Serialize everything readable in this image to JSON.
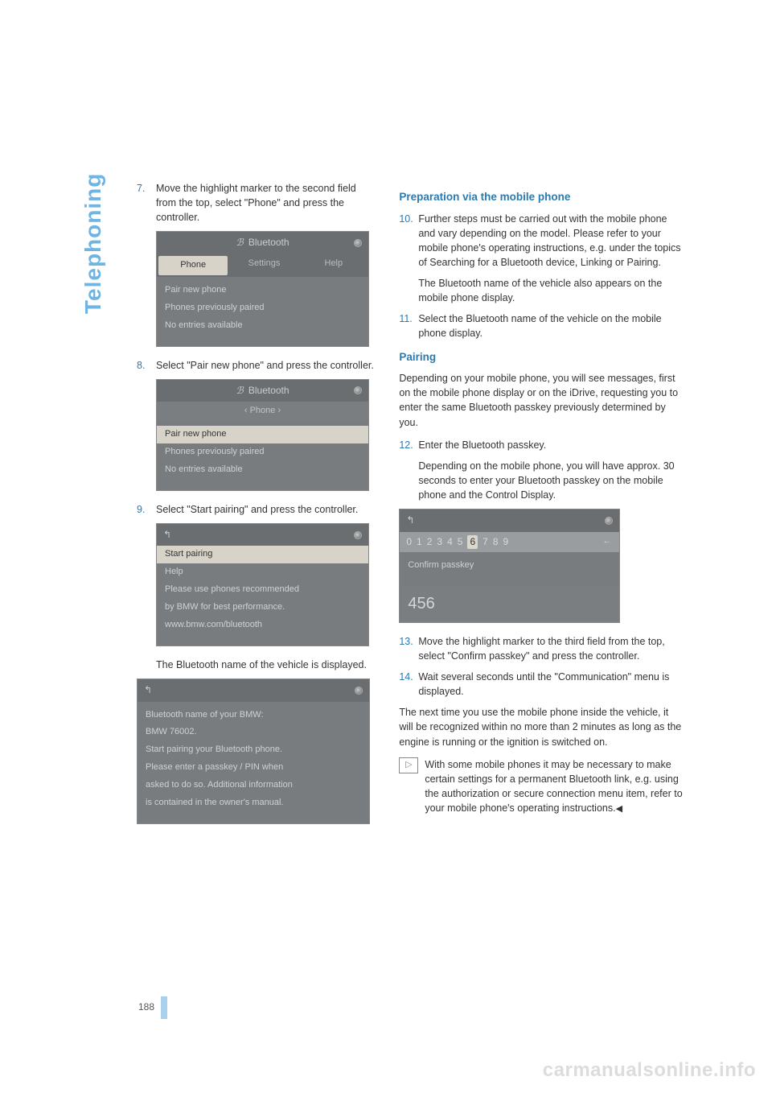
{
  "side_label": "Telephoning",
  "page_number": "188",
  "watermark": "carmanualsonline.info",
  "left": {
    "steps": [
      {
        "num": "7.",
        "text": "Move the highlight marker to the second field from the top, select \"Phone\" and press the controller."
      },
      {
        "num": "8.",
        "text": "Select \"Pair new phone\" and press the controller."
      },
      {
        "num": "9.",
        "text": "Select \"Start pairing\" and press the controller."
      }
    ],
    "sub_after_9": "The Bluetooth name of the vehicle is displayed.",
    "ss1": {
      "title": "Bluetooth",
      "tabs": [
        "Phone",
        "Settings",
        "Help"
      ],
      "lines": [
        "Pair new phone",
        "Phones previously paired",
        "No entries available"
      ]
    },
    "ss2": {
      "title": "Bluetooth",
      "subhead": "Phone",
      "lines": [
        "Pair new phone",
        "Phones previously paired",
        "No entries available"
      ]
    },
    "ss3": {
      "lines": [
        "Start pairing",
        "Help",
        "Please use phones recommended",
        "by BMW for best performance.",
        "www.bmw.com/bluetooth"
      ]
    },
    "ss4": {
      "lines": [
        "Bluetooth name of your BMW:",
        "BMW 76002.",
        "Start pairing your Bluetooth phone.",
        "Please enter a passkey / PIN when",
        "asked to do so. Additional information",
        "is contained in the owner's manual."
      ]
    }
  },
  "right": {
    "h1": "Preparation via the mobile phone",
    "step10": {
      "num": "10.",
      "text": "Further steps must be carried out with the mobile phone and vary depending on the model. Please refer to your mobile phone's operating instructions, e.g. under the topics of Searching for a Bluetooth device, Linking or Pairing."
    },
    "step10b": "The Bluetooth name of the vehicle also appears on the mobile phone display.",
    "step11": {
      "num": "11.",
      "text": "Select the Bluetooth name of the vehicle on the mobile phone display."
    },
    "h2": "Pairing",
    "p1": "Depending on your mobile phone, you will see messages, first on the mobile phone display or on the iDrive, requesting you to enter the same Bluetooth passkey previously determined by you.",
    "step12": {
      "num": "12.",
      "text": "Enter the Bluetooth passkey."
    },
    "step12b": "Depending on the mobile phone, you will have approx. 30 seconds to enter your Bluetooth passkey on the mobile phone and the Control Display.",
    "ss5": {
      "digits": [
        "0",
        "1",
        "2",
        "3",
        "4",
        "5",
        "6",
        "7",
        "8",
        "9"
      ],
      "selected": 6,
      "line1": "Confirm passkey",
      "value": "456"
    },
    "step13": {
      "num": "13.",
      "text": "Move the highlight marker to the third field from the top, select \"Confirm passkey\" and press the controller."
    },
    "step14": {
      "num": "14.",
      "text": "Wait several seconds until the \"Communication\" menu is displayed."
    },
    "p2": "The next time you use the mobile phone inside the vehicle, it will be recognized within no more than 2 minutes as long as the engine is running or the ignition is switched on.",
    "notice": "With some mobile phones it may be necessary to make certain settings for a permanent Bluetooth link, e.g. using the authorization or secure connection menu item, refer to your mobile phone's operating instructions."
  }
}
